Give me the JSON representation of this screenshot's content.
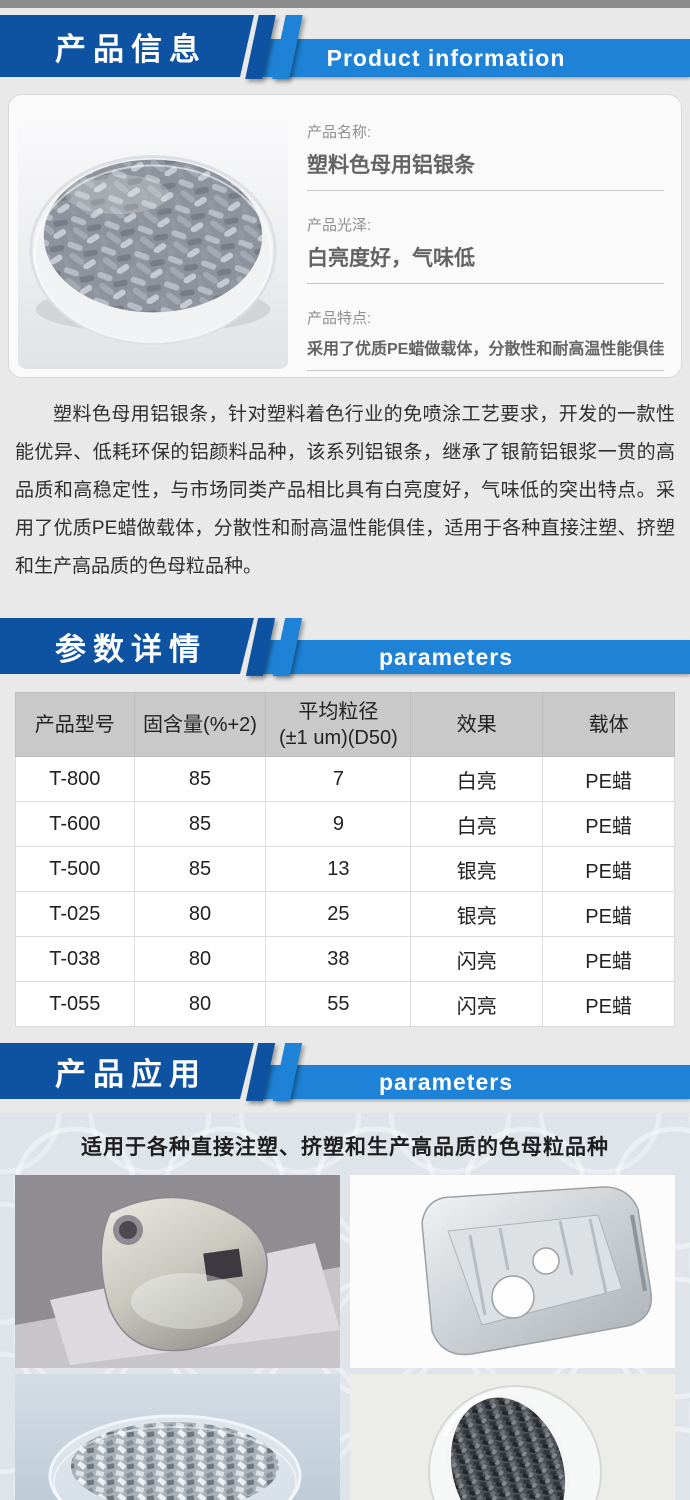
{
  "colors": {
    "dark_blue": "#0e52a2",
    "light_blue": "#1e82d6",
    "page_bg": "#e9e9e9",
    "table_header_bg": "#c9c9c9",
    "pattern_bg": "#dee4ea"
  },
  "product_info": {
    "title_zh": "产品信息",
    "title_en": "Product information",
    "photo_name": "petri-dish-of-aluminum-silver-pellets",
    "fields": [
      {
        "label": "产品名称:",
        "value": "塑料色母用铝银条"
      },
      {
        "label": "产品光泽:",
        "value": "白亮度好，气味低"
      },
      {
        "label": "产品特点:",
        "value": "采用了优质PE蜡做载体，分散性和耐高温性能俱佳"
      }
    ]
  },
  "description": "塑料色母用铝银条，针对塑料着色行业的免喷涂工艺要求，开发的一款性能优异、低耗环保的铝颜料品种，该系列铝银条，继承了银箭铝银浆一贯的高品质和高稳定性，与市场同类产品相比具有白亮度好，气味低的突出特点。采用了优质PE蜡做载体，分散性和耐高温性能俱佳，适用于各种直接注塑、挤塑和生产高品质的色母粒品种。",
  "parameters": {
    "title_zh": "参数详情",
    "title_en": "parameters",
    "table": {
      "headers": [
        "产品型号",
        "固含量(%+2)",
        "平均粒径\n(±1 um)(D50)",
        "效果",
        "载体"
      ],
      "rows": [
        [
          "T-800",
          "85",
          "7",
          "白亮",
          "PE蜡"
        ],
        [
          "T-600",
          "85",
          "9",
          "白亮",
          "PE蜡"
        ],
        [
          "T-500",
          "85",
          "13",
          "银亮",
          "PE蜡"
        ],
        [
          "T-025",
          "80",
          "25",
          "银亮",
          "PE蜡"
        ],
        [
          "T-038",
          "80",
          "38",
          "闪亮",
          "PE蜡"
        ],
        [
          "T-055",
          "80",
          "55",
          "闪亮",
          "PE蜡"
        ]
      ]
    }
  },
  "application": {
    "title_zh": "产品应用",
    "title_en": "parameters",
    "caption": "适用于各种直接注塑、挤塑和生产高品质的色母粒品种",
    "image_names": [
      "silver-plastic-housing-photo",
      "machined-aluminum-enclosure-photo",
      "dish-of-silver-pellets-photo",
      "glass-bowl-of-masterbatch-pellets-photo"
    ]
  }
}
